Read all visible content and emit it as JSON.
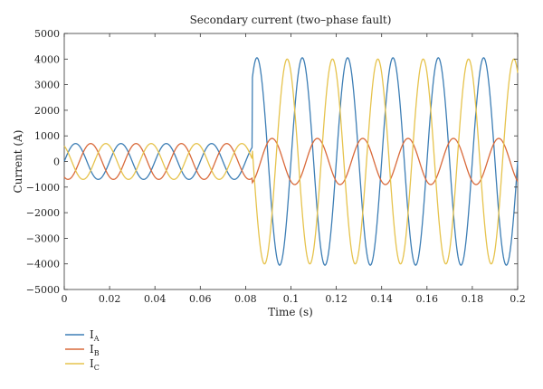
{
  "chart_data": {
    "type": "line",
    "title": "Secondary current (two–phase fault)",
    "xlabel": "Time (s)",
    "ylabel": "Current (A)",
    "xlim": [
      0,
      0.2
    ],
    "ylim": [
      -5000,
      5000
    ],
    "xticks": [
      0,
      0.02,
      0.04,
      0.06,
      0.08,
      0.1,
      0.12,
      0.14,
      0.16,
      0.18,
      0.2
    ],
    "xtick_labels": [
      "0",
      "0.02",
      "0.04",
      "0.06",
      "0.08",
      "0.1",
      "0.12",
      "0.14",
      "0.16",
      "0.18",
      "0.2"
    ],
    "yticks": [
      -5000,
      -4000,
      -3000,
      -2000,
      -1000,
      0,
      1000,
      2000,
      3000,
      4000,
      5000
    ],
    "ytick_labels": [
      "−5000",
      "−4000",
      "−3000",
      "−2000",
      "−1000",
      "0",
      "1000",
      "2000",
      "3000",
      "4000",
      "5000"
    ],
    "grid": false,
    "legend_placement": "below-left",
    "fault_time": 0.083,
    "frequency_hz": 50,
    "series": [
      {
        "name": "I",
        "subscript": "A",
        "color": "#3d7eb5",
        "pre_fault_amplitude": 700,
        "post_fault_amplitude": 4050,
        "phase_deg": 0
      },
      {
        "name": "I",
        "subscript": "B",
        "color": "#d96a3b",
        "pre_fault_amplitude": 700,
        "post_fault_amplitude": 900,
        "phase_deg": -120
      },
      {
        "name": "I",
        "subscript": "C",
        "color": "#e6c34d",
        "pre_fault_amplitude": 700,
        "post_fault_amplitude": 4000,
        "phase_deg": 120
      }
    ]
  }
}
